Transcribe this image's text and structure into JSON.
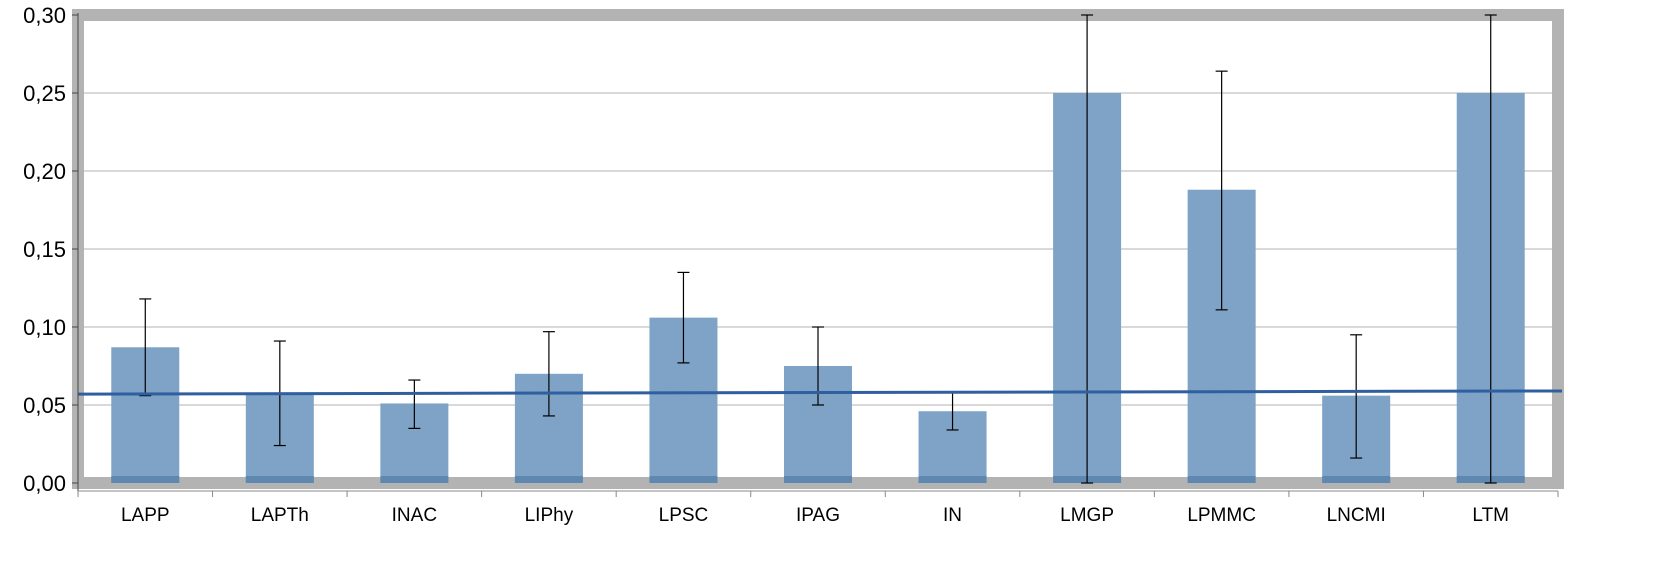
{
  "chart_data": {
    "type": "bar",
    "categories": [
      "LAPP",
      "LAPTh",
      "INAC",
      "LIPhy",
      "LPSC",
      "IPAG",
      "IN",
      "LMGP",
      "LPMMC",
      "LNCMI",
      "LTM"
    ],
    "values": [
      0.087,
      0.057,
      0.051,
      0.07,
      0.106,
      0.075,
      0.046,
      0.25,
      0.188,
      0.056,
      0.25
    ],
    "error_bars": {
      "low": [
        0.056,
        0.024,
        0.035,
        0.043,
        0.077,
        0.05,
        0.034,
        0.0,
        0.111,
        0.016,
        0.0
      ],
      "high": [
        0.118,
        0.091,
        0.066,
        0.097,
        0.135,
        0.1,
        0.058,
        0.3,
        0.264,
        0.095,
        0.3
      ]
    },
    "reference_line": {
      "type": "trend",
      "start": 0.057,
      "end": 0.059
    },
    "y_ticks": [
      "0,00",
      "0,05",
      "0,10",
      "0,15",
      "0,20",
      "0,25",
      "0,30"
    ],
    "y_tick_values": [
      0,
      0.05,
      0.1,
      0.15,
      0.2,
      0.25,
      0.3
    ],
    "ylim": [
      0,
      0.3
    ],
    "grid": true,
    "legend": "none",
    "title": "",
    "xlabel": "",
    "ylabel": "",
    "colors": {
      "bar_fill": "#7ea3c6",
      "bar_edge": "#5f88b0",
      "reference_line": "#2f5fa0",
      "gridline": "#b3b3b3",
      "frame": "#b3b3b3",
      "error_bar": "#000000"
    }
  }
}
